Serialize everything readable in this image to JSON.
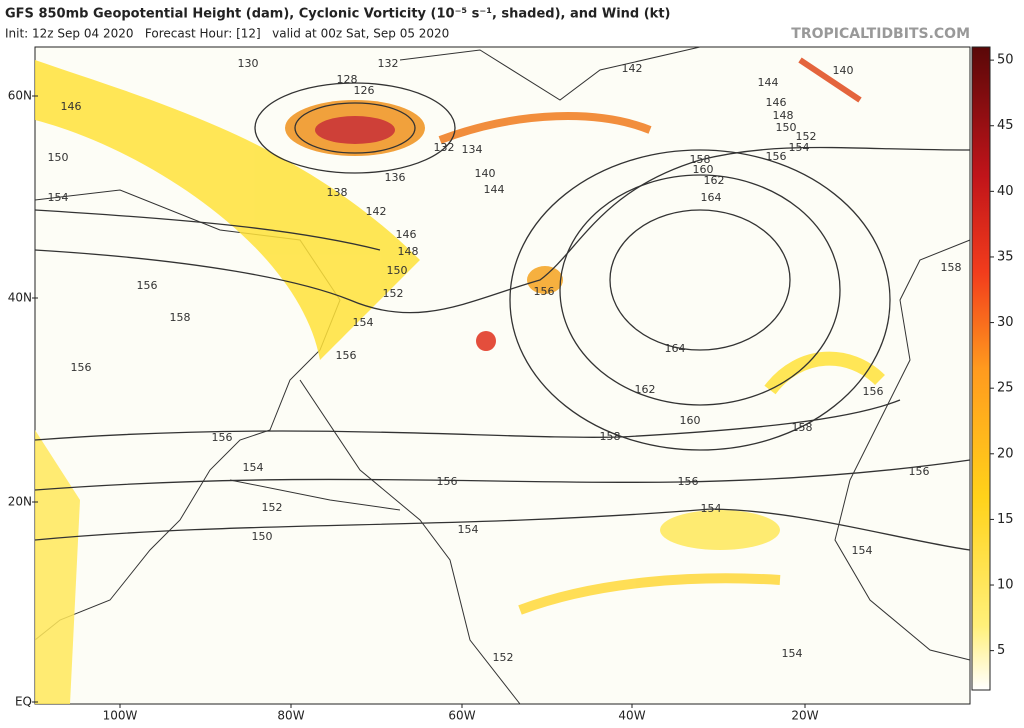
{
  "header": {
    "title": "GFS 850mb Geopotential Height (dam), Cyclonic Vorticity (10⁻⁵ s⁻¹, shaded), and Wind (kt)",
    "subtitle": "Init: 12z Sep 04 2020   Forecast Hour: [12]   valid at 00z Sat, Sep 05 2020",
    "site": "TROPICALTIDBITS.COM"
  },
  "map": {
    "lat_labels": [
      "60N",
      "40N",
      "20N",
      "EQ"
    ],
    "lon_labels": [
      "100W",
      "80W",
      "60W",
      "40W",
      "20W"
    ],
    "contour_labels": [
      "130",
      "128",
      "132",
      "126",
      "142",
      "140",
      "144",
      "146",
      "148",
      "150",
      "152",
      "154",
      "156",
      "158",
      "160",
      "162",
      "164",
      "146",
      "150",
      "154",
      "138",
      "136",
      "132",
      "134",
      "140",
      "144",
      "142",
      "146",
      "148",
      "150",
      "152",
      "154",
      "156",
      "156",
      "158",
      "156",
      "156",
      "156",
      "154",
      "152",
      "150",
      "156",
      "154",
      "158",
      "156",
      "154",
      "164",
      "162",
      "160",
      "158",
      "156",
      "158",
      "156",
      "154",
      "152",
      "154"
    ]
  },
  "colorbar": {
    "lim": [
      2,
      51
    ],
    "ticks": [
      5,
      10,
      15,
      20,
      25,
      30,
      35,
      40,
      45,
      50
    ]
  }
}
